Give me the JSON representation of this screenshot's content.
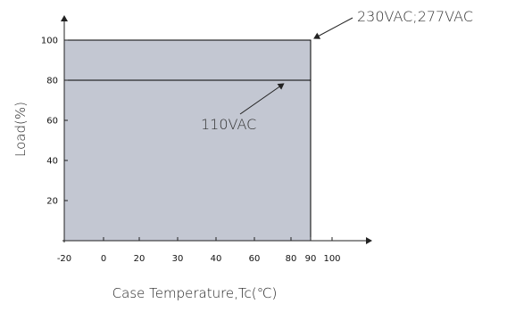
{
  "chart_data": {
    "type": "area",
    "xlabel": "Case Temperature,Tc(℃)",
    "ylabel": "Load(%)",
    "x_ticks": [
      -20,
      0,
      20,
      30,
      40,
      60,
      80,
      90,
      100
    ],
    "y_ticks": [
      20,
      40,
      60,
      80,
      100
    ],
    "xlim": [
      -20,
      105
    ],
    "ylim": [
      0,
      105
    ],
    "series": [
      {
        "name": "230VAC;277VAC",
        "x": [
          -20,
          90,
          90
        ],
        "y": [
          100,
          100,
          0
        ]
      },
      {
        "name": "110VAC",
        "x": [
          -20,
          90
        ],
        "y": [
          80,
          80
        ]
      }
    ],
    "annotations": [
      {
        "text": "230VAC;277VAC",
        "target_x": 90,
        "target_y": 100
      },
      {
        "text": "110VAC",
        "target_x": 75,
        "target_y": 80
      }
    ],
    "colors": {
      "fill": "#c3c7d2",
      "line": "#000000",
      "axis": "#222222"
    },
    "grid": false,
    "legend": "none"
  }
}
